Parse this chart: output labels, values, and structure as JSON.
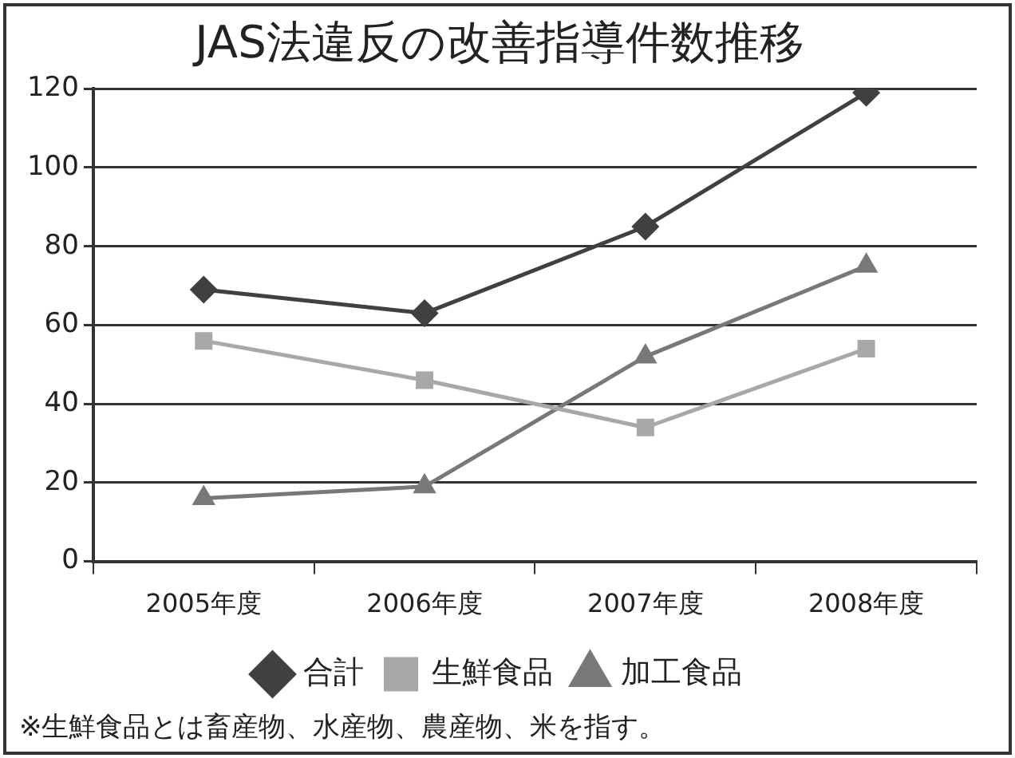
{
  "chart_data": {
    "type": "line",
    "title": "JAS法違反の改善指導件数推移",
    "categories": [
      "2005年度",
      "2006年度",
      "2007年度",
      "2008年度"
    ],
    "series": [
      {
        "name": "合計",
        "color": "#404040",
        "marker": "diamond",
        "values": [
          69,
          63,
          85,
          119
        ]
      },
      {
        "name": "生鮮食品",
        "color": "#a8a8a8",
        "marker": "square",
        "values": [
          56,
          46,
          34,
          54
        ]
      },
      {
        "name": "加工食品",
        "color": "#787878",
        "marker": "triangle",
        "values": [
          16,
          19,
          52,
          75
        ]
      }
    ],
    "ylim": [
      0,
      120
    ],
    "yticks": [
      0,
      20,
      40,
      60,
      80,
      100,
      120
    ],
    "grid": "y",
    "legend": "bottom",
    "annotations": [
      "※生鮮食品とは畜産物、水産物、農産物、米を指す。"
    ]
  }
}
